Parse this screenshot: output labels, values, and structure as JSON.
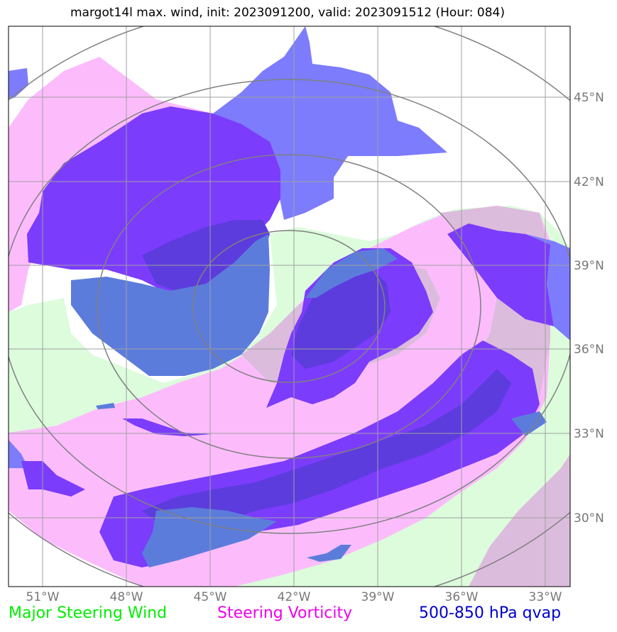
{
  "title": "margot14l max. wind, init: 2023091200, valid: 2023091512 (Hour: 084)",
  "map": {
    "lon_ticks": [
      "51°W",
      "48°W",
      "45°W",
      "42°W",
      "39°W",
      "36°W",
      "33°W"
    ],
    "lat_ticks": [
      "45°N",
      "42°N",
      "39°N",
      "36°N",
      "33°N",
      "30°N"
    ],
    "colors": {
      "steering_wind": "#dcfcdc",
      "vorticity": "#fcbcfc",
      "vorticity_overlap": "#dcbcdc",
      "qvap_light": "#7c7cfc",
      "qvap_mid": "#7c3cfc",
      "qvap_dark": "#5c3cdc",
      "qvap_blue": "#5c7cdc",
      "range_rings": "#808080",
      "grid": "#a0a0a0"
    }
  },
  "legend": [
    {
      "label": "Major Steering Wind",
      "color": "#00ee00"
    },
    {
      "label": "Steering Vorticity",
      "color": "#ee00ee"
    },
    {
      "label": "500-850 hPa qvap",
      "color": "#0000cc"
    }
  ]
}
